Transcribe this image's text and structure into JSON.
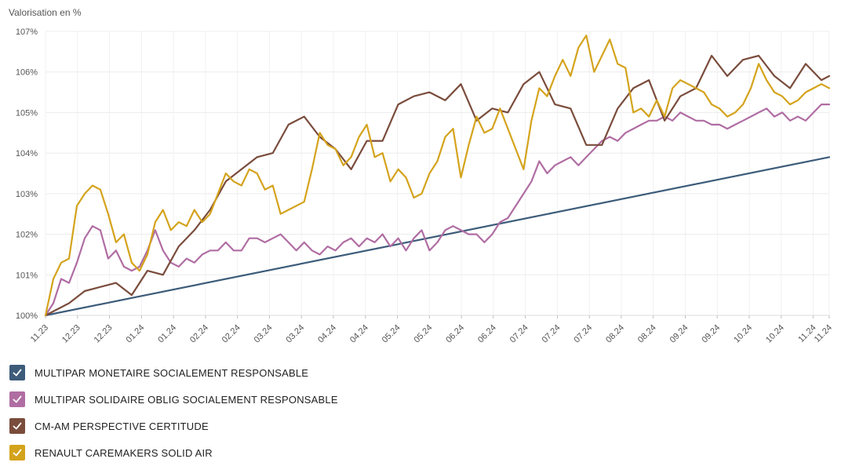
{
  "chart_data": {
    "type": "line",
    "ylabel": "Valorisation en %",
    "ylim": [
      100,
      107
    ],
    "yticks": [
      {
        "value": 100,
        "label": "100%"
      },
      {
        "value": 101,
        "label": "101%"
      },
      {
        "value": 102,
        "label": "102%"
      },
      {
        "value": 103,
        "label": "103%"
      },
      {
        "value": 104,
        "label": "104%"
      },
      {
        "value": 105,
        "label": "105%"
      },
      {
        "value": 106,
        "label": "106%"
      },
      {
        "value": 107,
        "label": "107%"
      }
    ],
    "xlim": [
      0,
      100
    ],
    "xticks": [
      {
        "t": 0,
        "label": "11.23"
      },
      {
        "t": 4.08,
        "label": "12.23"
      },
      {
        "t": 8.16,
        "label": "12.23"
      },
      {
        "t": 12.25,
        "label": "01.24"
      },
      {
        "t": 16.33,
        "label": "01.24"
      },
      {
        "t": 20.41,
        "label": "02.24"
      },
      {
        "t": 24.49,
        "label": "02.24"
      },
      {
        "t": 28.57,
        "label": "03.24"
      },
      {
        "t": 32.65,
        "label": "03.24"
      },
      {
        "t": 36.73,
        "label": "04.24"
      },
      {
        "t": 40.82,
        "label": "04.24"
      },
      {
        "t": 44.9,
        "label": "05.24"
      },
      {
        "t": 48.98,
        "label": "05.24"
      },
      {
        "t": 53.06,
        "label": "06.24"
      },
      {
        "t": 57.14,
        "label": "06.24"
      },
      {
        "t": 61.22,
        "label": "07.24"
      },
      {
        "t": 65.31,
        "label": "07.24"
      },
      {
        "t": 69.39,
        "label": "07.24"
      },
      {
        "t": 73.47,
        "label": "08.24"
      },
      {
        "t": 77.55,
        "label": "08.24"
      },
      {
        "t": 81.63,
        "label": "09.24"
      },
      {
        "t": 85.71,
        "label": "09.24"
      },
      {
        "t": 89.8,
        "label": "10.24"
      },
      {
        "t": 93.88,
        "label": "10.24"
      },
      {
        "t": 97.96,
        "label": "11.24"
      },
      {
        "t": 100,
        "label": "11.24"
      }
    ],
    "series": [
      {
        "name": "MULTIPAR MONETAIRE SOCIALEMENT RESPONSABLE",
        "color": "#3d5c7a",
        "x": [
          0,
          100
        ],
        "values": [
          100.0,
          103.9
        ]
      },
      {
        "name": "MULTIPAR SOLIDAIRE OBLIG SOCIALEMENT RESPONSABLE",
        "color": "#b06da3",
        "x": [
          0,
          1,
          2,
          3,
          4,
          5,
          6,
          7,
          8,
          9,
          10,
          11,
          12,
          13,
          14,
          15,
          16,
          17,
          18,
          19,
          20,
          21,
          22,
          23,
          24,
          25,
          26,
          27,
          28,
          29,
          30,
          31,
          32,
          33,
          34,
          35,
          36,
          37,
          38,
          39,
          40,
          41,
          42,
          43,
          44,
          45,
          46,
          47,
          48,
          49,
          50,
          51,
          52,
          53,
          54,
          55,
          56,
          57,
          58,
          59,
          60,
          61,
          62,
          63,
          64,
          65,
          66,
          67,
          68,
          69,
          70,
          71,
          72,
          73,
          74,
          75,
          76,
          77,
          78,
          79,
          80,
          81,
          82,
          83,
          84,
          85,
          86,
          87,
          88,
          89,
          90,
          91,
          92,
          93,
          94,
          95,
          96,
          97,
          98,
          99,
          100
        ],
        "values": [
          100.0,
          100.3,
          100.9,
          100.8,
          101.3,
          101.9,
          102.2,
          102.1,
          101.4,
          101.6,
          101.2,
          101.1,
          101.2,
          101.6,
          102.1,
          101.6,
          101.3,
          101.2,
          101.4,
          101.3,
          101.5,
          101.6,
          101.6,
          101.8,
          101.6,
          101.6,
          101.9,
          101.9,
          101.8,
          101.9,
          102.0,
          101.8,
          101.6,
          101.8,
          101.6,
          101.5,
          101.7,
          101.6,
          101.8,
          101.9,
          101.7,
          101.9,
          101.8,
          102.0,
          101.7,
          101.9,
          101.6,
          101.9,
          102.1,
          101.6,
          101.8,
          102.1,
          102.2,
          102.1,
          102.0,
          102.0,
          101.8,
          102.0,
          102.3,
          102.4,
          102.7,
          103.0,
          103.3,
          103.8,
          103.5,
          103.7,
          103.8,
          103.9,
          103.7,
          103.9,
          104.1,
          104.3,
          104.4,
          104.3,
          104.5,
          104.6,
          104.7,
          104.8,
          104.8,
          104.9,
          104.8,
          105.0,
          104.9,
          104.8,
          104.8,
          104.7,
          104.7,
          104.6,
          104.7,
          104.8,
          104.9,
          105.0,
          105.1,
          104.9,
          105.0,
          104.8,
          104.9,
          104.8,
          105.0,
          105.2,
          105.2
        ]
      },
      {
        "name": "CM-AM PERSPECTIVE CERTITUDE",
        "color": "#7a4c3c",
        "x": [
          0,
          3,
          5,
          9,
          11,
          13,
          15,
          17,
          19,
          21,
          23,
          25,
          27,
          29,
          31,
          33,
          35,
          37,
          39,
          41,
          43,
          45,
          47,
          49,
          51,
          53,
          55,
          57,
          59,
          61,
          63,
          65,
          67,
          69,
          71,
          73,
          75,
          77,
          79,
          81,
          83,
          85,
          87,
          89,
          91,
          93,
          95,
          97,
          99,
          100
        ],
        "values": [
          100.0,
          100.3,
          100.6,
          100.8,
          100.5,
          101.1,
          101.0,
          101.7,
          102.1,
          102.6,
          103.3,
          103.6,
          103.9,
          104.0,
          104.7,
          104.9,
          104.4,
          104.1,
          103.6,
          104.3,
          104.3,
          105.2,
          105.4,
          105.5,
          105.3,
          105.7,
          104.8,
          105.1,
          105.0,
          105.7,
          106.0,
          105.2,
          105.1,
          104.2,
          104.2,
          105.1,
          105.6,
          105.8,
          104.8,
          105.4,
          105.6,
          106.4,
          105.9,
          106.3,
          106.4,
          105.9,
          105.6,
          106.2,
          105.8,
          105.9
        ]
      },
      {
        "name": "RENAULT CAREMAKERS SOLID AIR",
        "color": "#d4a31c",
        "x": [
          0,
          1,
          2,
          3,
          4,
          5,
          6,
          7,
          8,
          9,
          10,
          11,
          12,
          13,
          14,
          15,
          16,
          17,
          18,
          19,
          20,
          21,
          22,
          23,
          24,
          25,
          26,
          27,
          28,
          29,
          30,
          31,
          32,
          33,
          34,
          35,
          36,
          37,
          38,
          39,
          40,
          41,
          42,
          43,
          44,
          45,
          46,
          47,
          48,
          49,
          50,
          51,
          52,
          53,
          54,
          55,
          56,
          57,
          58,
          59,
          60,
          61,
          62,
          63,
          64,
          65,
          66,
          67,
          68,
          69,
          70,
          71,
          72,
          73,
          74,
          75,
          76,
          77,
          78,
          79,
          80,
          81,
          82,
          83,
          84,
          85,
          86,
          87,
          88,
          89,
          90,
          91,
          92,
          93,
          94,
          95,
          96,
          97,
          98,
          99,
          100
        ],
        "values": [
          100.0,
          100.9,
          101.3,
          101.4,
          102.7,
          103.0,
          103.2,
          103.1,
          102.5,
          101.8,
          102.0,
          101.3,
          101.1,
          101.5,
          102.3,
          102.6,
          102.1,
          102.3,
          102.2,
          102.6,
          102.3,
          102.5,
          103.0,
          103.5,
          103.3,
          103.2,
          103.6,
          103.5,
          103.1,
          103.2,
          102.5,
          102.6,
          102.7,
          102.8,
          103.6,
          104.5,
          104.2,
          104.1,
          103.7,
          103.9,
          104.4,
          104.7,
          103.9,
          104.0,
          103.3,
          103.6,
          103.4,
          102.9,
          103.0,
          103.5,
          103.8,
          104.4,
          104.6,
          103.4,
          104.2,
          104.9,
          104.5,
          104.6,
          105.1,
          104.6,
          104.1,
          103.6,
          104.8,
          105.6,
          105.4,
          105.9,
          106.3,
          105.9,
          106.6,
          106.9,
          106.0,
          106.4,
          106.8,
          106.2,
          106.1,
          105.0,
          105.1,
          104.9,
          105.3,
          104.9,
          105.6,
          105.8,
          105.7,
          105.6,
          105.5,
          105.2,
          105.1,
          104.9,
          105.0,
          105.2,
          105.6,
          106.2,
          105.8,
          105.5,
          105.4,
          105.2,
          105.3,
          105.5,
          105.6,
          105.7,
          105.6
        ]
      }
    ]
  }
}
